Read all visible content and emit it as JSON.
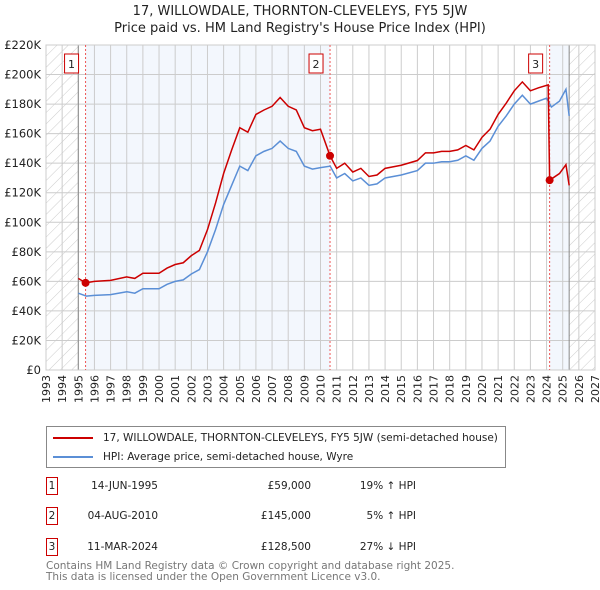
{
  "chart_data": {
    "type": "line",
    "title": "17, WILLOWDALE, THORNTON-CLEVELEYS, FY5 5JW",
    "subtitle": "Price paid vs. HM Land Registry's House Price Index (HPI)",
    "xlim": [
      1993,
      2027
    ],
    "ylim": [
      0,
      220000
    ],
    "x_ticks": [
      "1993",
      "1994",
      "1995",
      "1996",
      "1997",
      "1998",
      "1999",
      "2000",
      "2001",
      "2002",
      "2003",
      "2004",
      "2005",
      "2006",
      "2007",
      "2008",
      "2009",
      "2010",
      "2011",
      "2012",
      "2013",
      "2014",
      "2015",
      "2016",
      "2017",
      "2018",
      "2019",
      "2020",
      "2021",
      "2022",
      "2023",
      "2024",
      "2025",
      "2026",
      "2027"
    ],
    "y_ticks": [
      {
        "v": 0,
        "label": "£0"
      },
      {
        "v": 20000,
        "label": "£20K"
      },
      {
        "v": 40000,
        "label": "£40K"
      },
      {
        "v": 60000,
        "label": "£60K"
      },
      {
        "v": 80000,
        "label": "£80K"
      },
      {
        "v": 100000,
        "label": "£100K"
      },
      {
        "v": 120000,
        "label": "£120K"
      },
      {
        "v": 140000,
        "label": "£140K"
      },
      {
        "v": 160000,
        "label": "£160K"
      },
      {
        "v": 180000,
        "label": "£180K"
      },
      {
        "v": 200000,
        "label": "£200K"
      },
      {
        "v": 220000,
        "label": "£220K"
      }
    ],
    "grid": true,
    "data_range": [
      1995.0,
      2025.4
    ],
    "series": [
      {
        "name": "17, WILLOWDALE, THORNTON-CLEVELEYS, FY5 5JW (semi-detached house)",
        "color": "#cc0000",
        "x": [
          1995.0,
          1995.45,
          1996,
          1997,
          1998,
          1998.5,
          1999,
          2000,
          2000.5,
          2001,
          2001.5,
          2002,
          2002.5,
          2003,
          2003.5,
          2004,
          2004.5,
          2005,
          2005.5,
          2006,
          2006.5,
          2007,
          2007.5,
          2008,
          2008.5,
          2009,
          2009.5,
          2010,
          2010.59,
          2011,
          2011.5,
          2012,
          2012.5,
          2013,
          2013.5,
          2014,
          2015,
          2016,
          2016.5,
          2017,
          2017.5,
          2018,
          2018.5,
          2019,
          2019.5,
          2020,
          2020.5,
          2021,
          2021.5,
          2022,
          2022.5,
          2023,
          2023.5,
          2024.1,
          2024.19,
          2024.8,
          2025.2,
          2025.4
        ],
        "y": [
          62000,
          59000,
          60000,
          60700,
          63000,
          62000,
          65500,
          65500,
          69000,
          71400,
          72600,
          77400,
          81000,
          95000,
          113000,
          133000,
          149000,
          164000,
          161000,
          173000,
          176000,
          178500,
          184500,
          178500,
          176000,
          164000,
          162000,
          163000,
          145000,
          136500,
          140000,
          134000,
          136500,
          131000,
          132000,
          136500,
          138600,
          141800,
          147000,
          147000,
          148000,
          148000,
          149000,
          152000,
          149000,
          157500,
          163000,
          173000,
          180600,
          189000,
          195000,
          189000,
          191000,
          193000,
          128500,
          133000,
          139000,
          125000
        ]
      },
      {
        "name": "HPI: Average price, semi-detached house, Wyre",
        "color": "#5b8fd6",
        "x": [
          1995.0,
          1995.5,
          1996,
          1997,
          1998,
          1998.5,
          1999,
          2000,
          2000.5,
          2001,
          2001.5,
          2002,
          2002.5,
          2003,
          2003.5,
          2004,
          2004.5,
          2005,
          2005.5,
          2006,
          2006.5,
          2007,
          2007.5,
          2008,
          2008.5,
          2009,
          2009.5,
          2010,
          2010.6,
          2011,
          2011.5,
          2012,
          2012.5,
          2013,
          2013.5,
          2014,
          2015,
          2016,
          2016.5,
          2017,
          2017.5,
          2018,
          2018.5,
          2019,
          2019.5,
          2020,
          2020.5,
          2021,
          2021.5,
          2022,
          2022.5,
          2023,
          2023.5,
          2024,
          2024.3,
          2024.8,
          2025.2,
          2025.4
        ],
        "y": [
          52000,
          50000,
          50500,
          51000,
          53000,
          52000,
          55000,
          55000,
          58000,
          60000,
          61000,
          65000,
          68000,
          80000,
          95000,
          112000,
          125000,
          138000,
          135000,
          145000,
          148000,
          150000,
          155000,
          150000,
          148000,
          138000,
          136000,
          137000,
          138000,
          130000,
          133000,
          128000,
          130000,
          125000,
          126000,
          130000,
          132000,
          135000,
          140000,
          140000,
          141000,
          141000,
          142000,
          145000,
          142000,
          150000,
          155000,
          165000,
          172000,
          180000,
          186000,
          180000,
          182000,
          184000,
          178000,
          182000,
          190000,
          172000
        ]
      }
    ],
    "sales": [
      {
        "id": "1",
        "x": 1995.45,
        "price_value": 59000,
        "date": "14-JUN-1995",
        "price": "£59,000",
        "hpi": "19% ↑ HPI"
      },
      {
        "id": "2",
        "x": 2010.59,
        "price_value": 145000,
        "date": "04-AUG-2010",
        "price": "£145,000",
        "hpi": "5% ↑ HPI"
      },
      {
        "id": "3",
        "x": 2024.19,
        "price_value": 128500,
        "date": "11-MAR-2024",
        "price": "£128,500",
        "hpi": "27% ↓ HPI"
      }
    ]
  },
  "footer": {
    "line1": "Contains HM Land Registry data © Crown copyright and database right 2025.",
    "line2": "This data is licensed under the Open Government Licence v3.0."
  }
}
